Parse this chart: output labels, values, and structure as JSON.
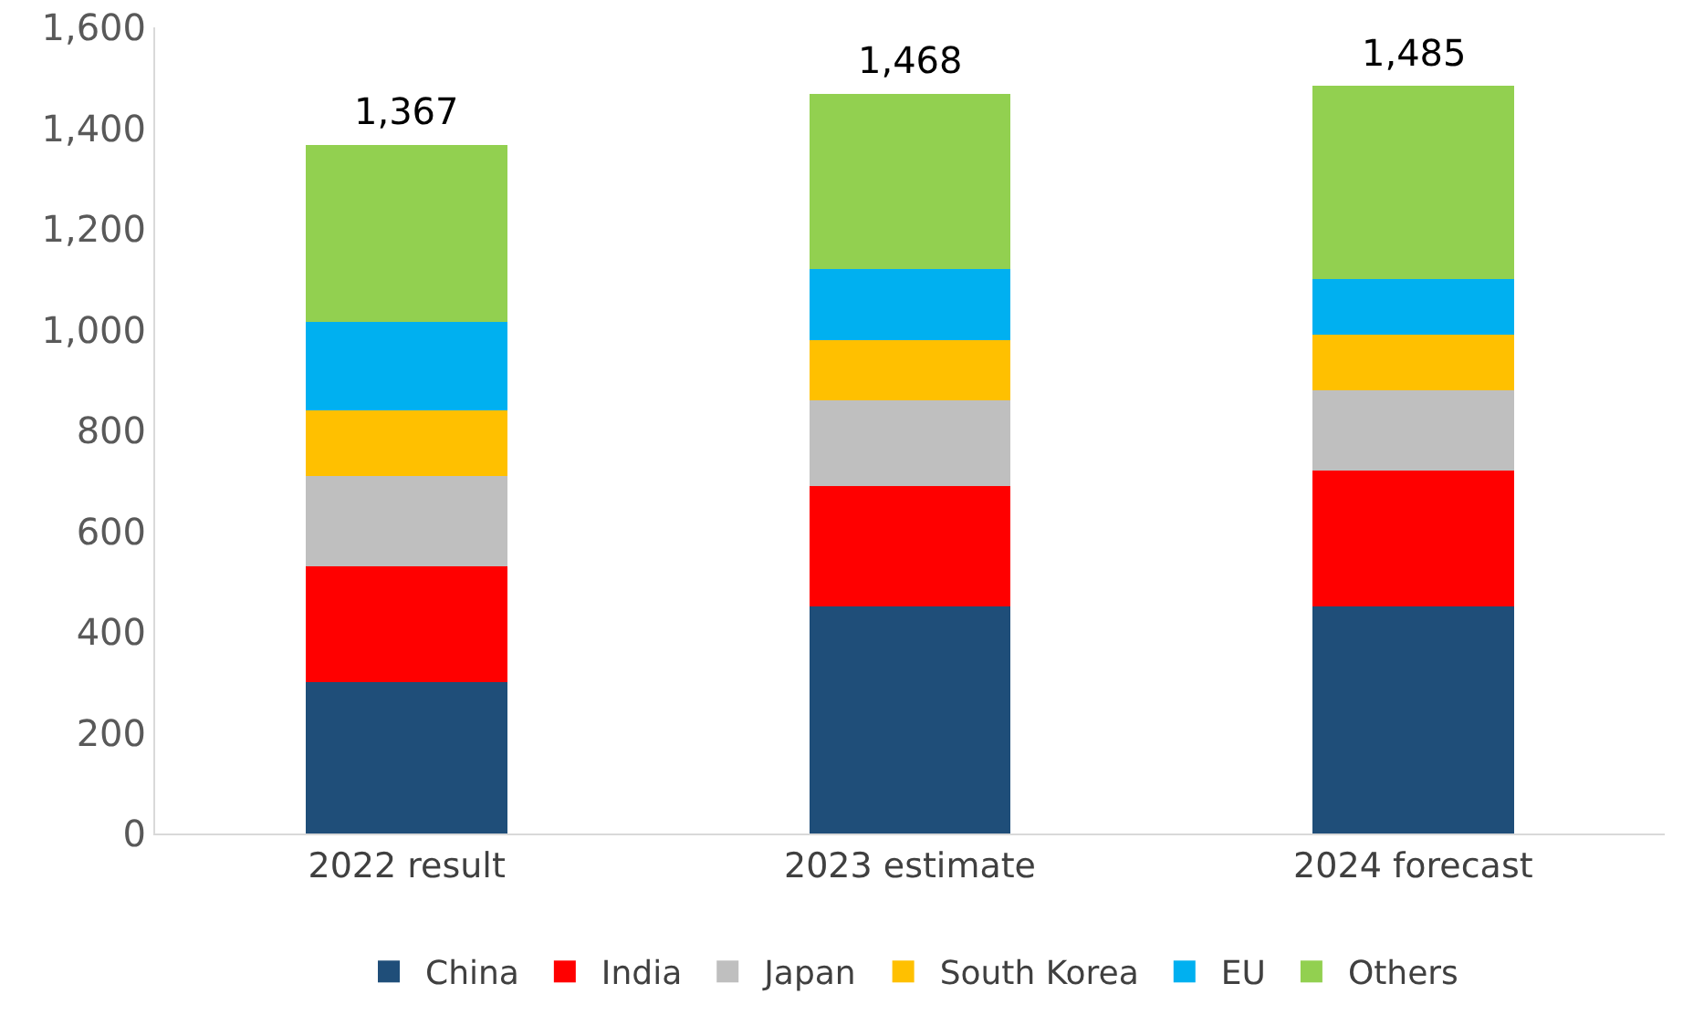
{
  "chart_data": {
    "type": "bar",
    "stacked": true,
    "categories": [
      "2022 result",
      "2023 estimate",
      "2024 forecast"
    ],
    "series": [
      {
        "name": "China",
        "color": "#1f4e79",
        "values": [
          300,
          450,
          450
        ]
      },
      {
        "name": "India",
        "color": "#ff0000",
        "values": [
          230,
          240,
          270
        ]
      },
      {
        "name": "Japan",
        "color": "#bfbfbf",
        "values": [
          180,
          170,
          160
        ]
      },
      {
        "name": "South Korea",
        "color": "#ffc000",
        "values": [
          130,
          120,
          110
        ]
      },
      {
        "name": "EU",
        "color": "#00b0f0",
        "values": [
          175,
          140,
          110
        ]
      },
      {
        "name": "Others",
        "color": "#92d050",
        "values": [
          352,
          348,
          385
        ]
      }
    ],
    "totals": [
      "1,367",
      "1,468",
      "1,485"
    ],
    "ylim": [
      0,
      1600
    ],
    "yticks": [
      {
        "value": 0,
        "label": "0"
      },
      {
        "value": 200,
        "label": "200"
      },
      {
        "value": 400,
        "label": "400"
      },
      {
        "value": 600,
        "label": "600"
      },
      {
        "value": 800,
        "label": "800"
      },
      {
        "value": 1000,
        "label": "1,000"
      },
      {
        "value": 1200,
        "label": "1,200"
      },
      {
        "value": 1400,
        "label": "1,400"
      },
      {
        "value": 1600,
        "label": "1,600"
      }
    ],
    "grid": false,
    "legend": "bottom"
  }
}
